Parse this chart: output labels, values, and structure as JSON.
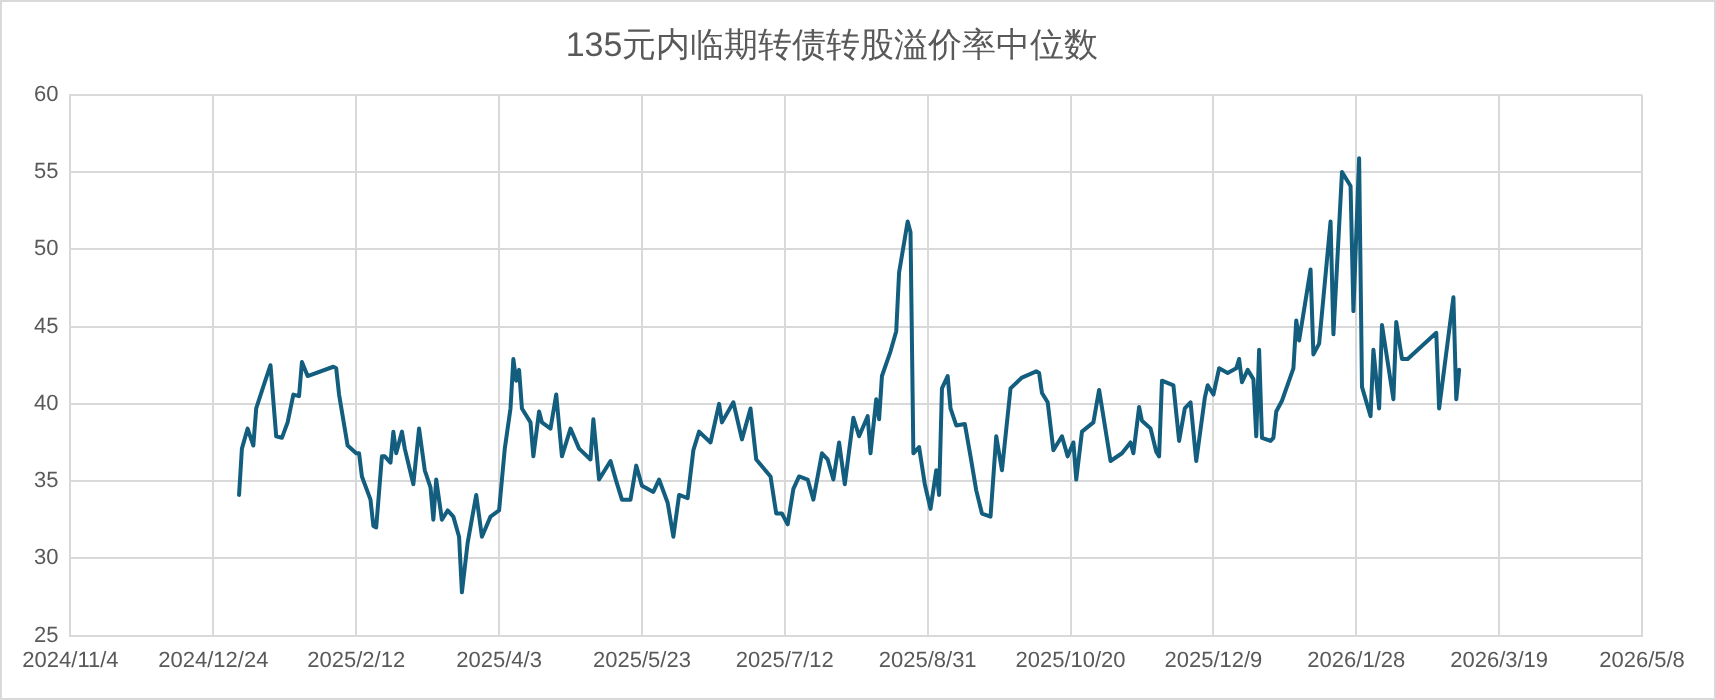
{
  "chart_data": {
    "type": "line",
    "title": "135元内临期转债转股溢价率中位数",
    "xlim": [
      "2024-11-04",
      "2026-05-08"
    ],
    "xticks": [
      {
        "value": "2024-11-04",
        "label": "2024/11/4"
      },
      {
        "value": "2024-12-24",
        "label": "2024/12/24"
      },
      {
        "value": "2025-02-12",
        "label": "2025/2/12"
      },
      {
        "value": "2025-04-03",
        "label": "2025/4/3"
      },
      {
        "value": "2025-05-23",
        "label": "2025/5/23"
      },
      {
        "value": "2025-07-12",
        "label": "2025/7/12"
      },
      {
        "value": "2025-08-31",
        "label": "2025/8/31"
      },
      {
        "value": "2025-10-20",
        "label": "2025/10/20"
      },
      {
        "value": "2025-12-09",
        "label": "2025/12/9"
      },
      {
        "value": "2026-01-28",
        "label": "2026/1/28"
      },
      {
        "value": "2026-03-19",
        "label": "2026/3/19"
      },
      {
        "value": "2026-05-08",
        "label": "2026/5/8"
      }
    ],
    "ylim": [
      25,
      60
    ],
    "yticks": [
      25,
      30,
      35,
      40,
      45,
      50,
      55,
      60
    ],
    "grid": true,
    "legend": false,
    "marker": "none",
    "line_style": "solid",
    "series": [
      {
        "color": "#135e7e",
        "x": [
          "2025-01-02",
          "2025-01-03",
          "2025-01-05",
          "2025-01-07",
          "2025-01-08",
          "2025-01-11",
          "2025-01-13",
          "2025-01-15",
          "2025-01-17",
          "2025-01-19",
          "2025-01-21",
          "2025-01-23",
          "2025-01-24",
          "2025-01-26",
          "2025-02-04",
          "2025-02-05",
          "2025-02-06",
          "2025-02-09",
          "2025-02-12",
          "2025-02-13",
          "2025-02-14",
          "2025-02-17",
          "2025-02-18",
          "2025-02-19",
          "2025-02-21",
          "2025-02-22",
          "2025-02-24",
          "2025-02-25",
          "2025-02-26",
          "2025-02-28",
          "2025-03-01",
          "2025-03-04",
          "2025-03-06",
          "2025-03-08",
          "2025-03-10",
          "2025-03-11",
          "2025-03-12",
          "2025-03-14",
          "2025-03-16",
          "2025-03-18",
          "2025-03-20",
          "2025-03-21",
          "2025-03-23",
          "2025-03-26",
          "2025-03-28",
          "2025-03-31",
          "2025-04-03",
          "2025-04-05",
          "2025-04-07",
          "2025-04-08",
          "2025-04-09",
          "2025-04-10",
          "2025-04-11",
          "2025-04-14",
          "2025-04-15",
          "2025-04-17",
          "2025-04-18",
          "2025-04-21",
          "2025-04-23",
          "2025-04-25",
          "2025-04-28",
          "2025-05-01",
          "2025-05-05",
          "2025-05-06",
          "2025-05-08",
          "2025-05-12",
          "2025-05-14",
          "2025-05-16",
          "2025-05-19",
          "2025-05-21",
          "2025-05-23",
          "2025-05-27",
          "2025-05-29",
          "2025-06-01",
          "2025-06-03",
          "2025-06-05",
          "2025-06-08",
          "2025-06-10",
          "2025-06-12",
          "2025-06-16",
          "2025-06-19",
          "2025-06-20",
          "2025-06-24",
          "2025-06-27",
          "2025-06-30",
          "2025-07-02",
          "2025-07-07",
          "2025-07-09",
          "2025-07-11",
          "2025-07-13",
          "2025-07-15",
          "2025-07-17",
          "2025-07-20",
          "2025-07-22",
          "2025-07-25",
          "2025-07-27",
          "2025-07-29",
          "2025-07-31",
          "2025-08-02",
          "2025-08-05",
          "2025-08-07",
          "2025-08-10",
          "2025-08-11",
          "2025-08-13",
          "2025-08-14",
          "2025-08-15",
          "2025-08-18",
          "2025-08-20",
          "2025-08-21",
          "2025-08-24",
          "2025-08-25",
          "2025-08-26",
          "2025-08-28",
          "2025-08-30",
          "2025-09-01",
          "2025-09-03",
          "2025-09-04",
          "2025-09-05",
          "2025-09-07",
          "2025-09-08",
          "2025-09-10",
          "2025-09-13",
          "2025-09-15",
          "2025-09-17",
          "2025-09-19",
          "2025-09-22",
          "2025-09-24",
          "2025-09-26",
          "2025-09-29",
          "2025-10-03",
          "2025-10-08",
          "2025-10-09",
          "2025-10-10",
          "2025-10-12",
          "2025-10-14",
          "2025-10-17",
          "2025-10-19",
          "2025-10-21",
          "2025-10-22",
          "2025-10-24",
          "2025-10-28",
          "2025-10-30",
          "2025-11-03",
          "2025-11-07",
          "2025-11-10",
          "2025-11-11",
          "2025-11-13",
          "2025-11-14",
          "2025-11-17",
          "2025-11-19",
          "2025-11-20",
          "2025-11-21",
          "2025-11-25",
          "2025-11-27",
          "2025-11-29",
          "2025-12-01",
          "2025-12-03",
          "2025-12-06",
          "2025-12-07",
          "2025-12-09",
          "2025-12-11",
          "2025-12-14",
          "2025-12-17",
          "2025-12-18",
          "2025-12-19",
          "2025-12-21",
          "2025-12-23",
          "2025-12-24",
          "2025-12-25",
          "2025-12-26",
          "2025-12-29",
          "2025-12-30",
          "2025-12-31",
          "2026-01-02",
          "2026-01-06",
          "2026-01-07",
          "2026-01-08",
          "2026-01-12",
          "2026-01-13",
          "2026-01-15",
          "2026-01-19",
          "2026-01-20",
          "2026-01-23",
          "2026-01-26",
          "2026-01-27",
          "2026-01-29",
          "2026-01-30",
          "2026-02-02",
          "2026-02-03",
          "2026-02-05",
          "2026-02-06",
          "2026-02-10",
          "2026-02-11",
          "2026-02-13",
          "2026-02-15",
          "2026-02-25",
          "2026-02-26",
          "2026-03-03",
          "2026-03-04",
          "2026-03-05"
        ],
        "values": [
          34.1,
          37.1,
          38.4,
          37.3,
          39.7,
          41.4,
          42.5,
          37.9,
          37.8,
          38.8,
          40.6,
          40.5,
          42.7,
          41.8,
          42.4,
          42.3,
          40.6,
          37.3,
          36.8,
          36.8,
          35.3,
          33.8,
          32.1,
          32.0,
          36.6,
          36.6,
          36.2,
          38.2,
          36.8,
          38.2,
          37.1,
          34.8,
          38.4,
          35.7,
          34.6,
          32.5,
          35.1,
          32.5,
          33.1,
          32.7,
          31.4,
          27.8,
          31.0,
          34.1,
          31.4,
          32.7,
          33.1,
          37.1,
          39.7,
          42.9,
          41.5,
          42.2,
          39.7,
          38.8,
          36.6,
          39.5,
          38.8,
          38.4,
          40.6,
          36.6,
          38.4,
          37.1,
          36.4,
          39.0,
          35.1,
          36.3,
          35.0,
          33.8,
          33.8,
          36.0,
          34.7,
          34.3,
          35.1,
          33.6,
          31.4,
          34.1,
          33.9,
          37.0,
          38.2,
          37.5,
          40.0,
          38.8,
          40.1,
          37.7,
          39.7,
          36.4,
          35.3,
          32.9,
          32.9,
          32.2,
          34.5,
          35.3,
          35.1,
          33.8,
          36.8,
          36.4,
          35.1,
          37.5,
          34.8,
          39.1,
          37.9,
          39.2,
          36.8,
          40.3,
          39.0,
          41.8,
          43.4,
          44.7,
          48.5,
          51.8,
          51.1,
          36.8,
          37.2,
          34.8,
          33.2,
          35.7,
          34.1,
          41.0,
          41.8,
          39.7,
          38.6,
          38.7,
          36.6,
          34.4,
          32.9,
          32.7,
          37.9,
          35.7,
          41.0,
          41.7,
          42.1,
          42.0,
          40.7,
          40.1,
          37.0,
          37.9,
          36.6,
          37.5,
          35.1,
          38.2,
          38.8,
          40.9,
          36.3,
          36.8,
          37.5,
          36.8,
          39.8,
          38.9,
          38.4,
          36.9,
          36.6,
          41.5,
          41.2,
          37.6,
          39.7,
          40.1,
          36.3,
          40.4,
          41.2,
          40.6,
          42.3,
          42.0,
          42.3,
          42.9,
          41.4,
          42.2,
          41.6,
          37.9,
          43.5,
          37.8,
          37.6,
          37.8,
          39.5,
          40.2,
          42.3,
          45.4,
          44.1,
          48.7,
          43.2,
          43.9,
          51.8,
          44.5,
          55.0,
          54.1,
          46.0,
          55.9,
          41.1,
          39.2,
          43.5,
          39.7,
          45.1,
          40.3,
          45.3,
          42.9,
          42.9,
          44.6,
          39.7,
          46.9,
          40.3,
          42.2
        ]
      }
    ]
  }
}
